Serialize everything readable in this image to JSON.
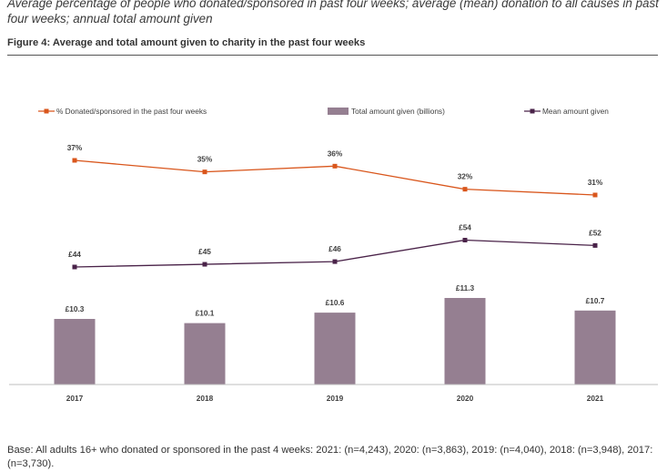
{
  "header": {
    "subtitle": "Average percentage of people who donated/sponsored in past four weeks; average (mean) donation to all causes in past four weeks; annual total amount given",
    "figure_title": "Figure 4: Average and total amount given to charity in the past four weeks"
  },
  "footnote": "Base: All adults 16+ who donated or sponsored in the past 4 weeks: 2021: (n=4,243), 2020: (n=3,863), 2019: (n=4,040), 2018: (n=3,948), 2017: (n=3,730).",
  "chart_data": {
    "type": "bar",
    "categories": [
      "2017",
      "2018",
      "2019",
      "2020",
      "2021"
    ],
    "series": [
      {
        "name": "% Donated/sponsored in the past four weeks",
        "kind": "line",
        "values": [
          37,
          35,
          36,
          32,
          31
        ],
        "labels": [
          "37%",
          "35%",
          "36%",
          "32%",
          "31%"
        ],
        "color": "#d9561c"
      },
      {
        "name": "Total amount given (billions)",
        "kind": "bar",
        "values": [
          10.3,
          10.1,
          10.6,
          11.3,
          10.7
        ],
        "labels": [
          "£10.3",
          "£10.1",
          "£10.6",
          "£11.3",
          "£10.7"
        ],
        "color": "#957f91"
      },
      {
        "name": "Mean amount given",
        "kind": "line",
        "values": [
          44,
          45,
          46,
          54,
          52
        ],
        "labels": [
          "£44",
          "£45",
          "£46",
          "£54",
          "£52"
        ],
        "color": "#4a2349"
      }
    ],
    "legend_position": "top",
    "grid": false,
    "axis_color": "#bfbfbf"
  }
}
